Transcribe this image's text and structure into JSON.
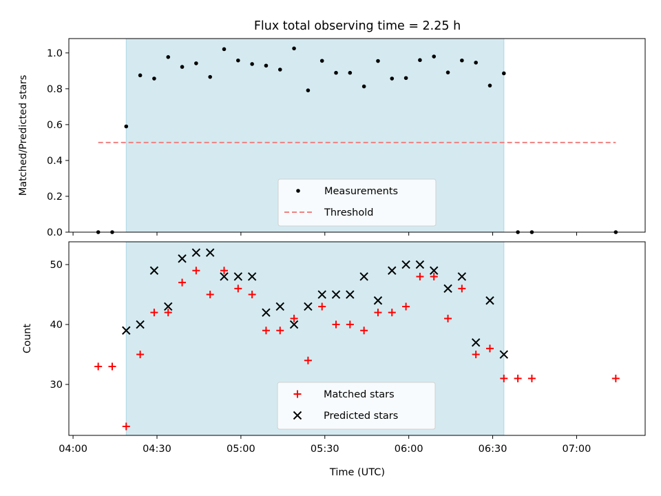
{
  "chart_data": [
    {
      "type": "scatter",
      "title": "Flux total observing time = 2.25 h",
      "xlabel": "",
      "ylabel": "Matched/Predicted stars",
      "ylim": [
        0,
        1.08
      ],
      "yticks": [
        0.0,
        0.2,
        0.4,
        0.6,
        0.8,
        1.0
      ],
      "ytick_labels": [
        "0.0",
        "0.2",
        "0.4",
        "0.6",
        "0.8",
        "1.0"
      ],
      "observing_window": [
        "04:19",
        "06:34"
      ],
      "shade_color": "#d4eaf0",
      "legend_position": "lower-center",
      "series": [
        {
          "name": "Measurements",
          "marker": "dot",
          "color": "#000000",
          "points": [
            [
              "04:09",
              0.0
            ],
            [
              "04:14",
              0.0
            ],
            [
              "04:19",
              0.59
            ],
            [
              "04:24",
              0.875
            ],
            [
              "04:29",
              0.857
            ],
            [
              "04:34",
              0.977
            ],
            [
              "04:39",
              0.922
            ],
            [
              "04:44",
              0.942
            ],
            [
              "04:49",
              0.866
            ],
            [
              "04:54",
              1.021
            ],
            [
              "04:59",
              0.958
            ],
            [
              "05:04",
              0.938
            ],
            [
              "05:09",
              0.929
            ],
            [
              "05:14",
              0.907
            ],
            [
              "05:19",
              1.025
            ],
            [
              "05:24",
              0.791
            ],
            [
              "05:29",
              0.956
            ],
            [
              "05:34",
              0.889
            ],
            [
              "05:39",
              0.889
            ],
            [
              "05:44",
              0.813
            ],
            [
              "05:49",
              0.955
            ],
            [
              "05:54",
              0.857
            ],
            [
              "05:59",
              0.86
            ],
            [
              "06:04",
              0.96
            ],
            [
              "06:09",
              0.98
            ],
            [
              "06:14",
              0.891
            ],
            [
              "06:19",
              0.958
            ],
            [
              "06:24",
              0.946
            ],
            [
              "06:29",
              0.818
            ],
            [
              "06:34",
              0.886
            ],
            [
              "06:39",
              0.0
            ],
            [
              "06:44",
              0.0
            ],
            [
              "07:14",
              0.0
            ]
          ]
        },
        {
          "name": "Threshold",
          "marker": "dashed-line",
          "color": "#f08080",
          "points": [
            [
              "04:09",
              0.5
            ],
            [
              "07:14",
              0.5
            ]
          ]
        }
      ]
    },
    {
      "type": "scatter",
      "title": "",
      "xlabel": "Time (UTC)",
      "ylabel": "Count",
      "ylim": [
        21.5,
        53.8
      ],
      "yticks": [
        30,
        40,
        50
      ],
      "ytick_labels": [
        "30",
        "40",
        "50"
      ],
      "xticks": [
        "04:00",
        "04:30",
        "05:00",
        "05:30",
        "06:00",
        "06:30",
        "07:00"
      ],
      "observing_window": [
        "04:19",
        "06:34"
      ],
      "shade_color": "#d4eaf0",
      "legend_position": "lower-center",
      "series": [
        {
          "name": "Matched stars",
          "marker": "plus",
          "color": "#ff0000",
          "points": [
            [
              "04:09",
              33
            ],
            [
              "04:14",
              33
            ],
            [
              "04:19",
              23
            ],
            [
              "04:24",
              35
            ],
            [
              "04:29",
              42
            ],
            [
              "04:34",
              42
            ],
            [
              "04:39",
              47
            ],
            [
              "04:44",
              49
            ],
            [
              "04:49",
              45
            ],
            [
              "04:54",
              49
            ],
            [
              "04:59",
              46
            ],
            [
              "05:04",
              45
            ],
            [
              "05:09",
              39
            ],
            [
              "05:14",
              39
            ],
            [
              "05:19",
              41
            ],
            [
              "05:24",
              34
            ],
            [
              "05:29",
              43
            ],
            [
              "05:34",
              40
            ],
            [
              "05:39",
              40
            ],
            [
              "05:44",
              39
            ],
            [
              "05:49",
              42
            ],
            [
              "05:54",
              42
            ],
            [
              "05:59",
              43
            ],
            [
              "06:04",
              48
            ],
            [
              "06:09",
              48
            ],
            [
              "06:14",
              41
            ],
            [
              "06:19",
              46
            ],
            [
              "06:24",
              35
            ],
            [
              "06:29",
              36
            ],
            [
              "06:34",
              31
            ],
            [
              "06:39",
              31
            ],
            [
              "06:44",
              31
            ],
            [
              "07:14",
              31
            ]
          ]
        },
        {
          "name": "Predicted stars",
          "marker": "x",
          "color": "#000000",
          "points": [
            [
              "04:19",
              39
            ],
            [
              "04:24",
              40
            ],
            [
              "04:29",
              49
            ],
            [
              "04:34",
              43
            ],
            [
              "04:39",
              51
            ],
            [
              "04:44",
              52
            ],
            [
              "04:49",
              52
            ],
            [
              "04:54",
              48
            ],
            [
              "04:59",
              48
            ],
            [
              "05:04",
              48
            ],
            [
              "05:09",
              42
            ],
            [
              "05:14",
              43
            ],
            [
              "05:19",
              40
            ],
            [
              "05:24",
              43
            ],
            [
              "05:29",
              45
            ],
            [
              "05:34",
              45
            ],
            [
              "05:39",
              45
            ],
            [
              "05:44",
              48
            ],
            [
              "05:49",
              44
            ],
            [
              "05:54",
              49
            ],
            [
              "05:59",
              50
            ],
            [
              "06:04",
              50
            ],
            [
              "06:09",
              49
            ],
            [
              "06:14",
              46
            ],
            [
              "06:19",
              48
            ],
            [
              "06:24",
              37
            ],
            [
              "06:29",
              44
            ],
            [
              "06:34",
              35
            ]
          ]
        }
      ]
    }
  ]
}
